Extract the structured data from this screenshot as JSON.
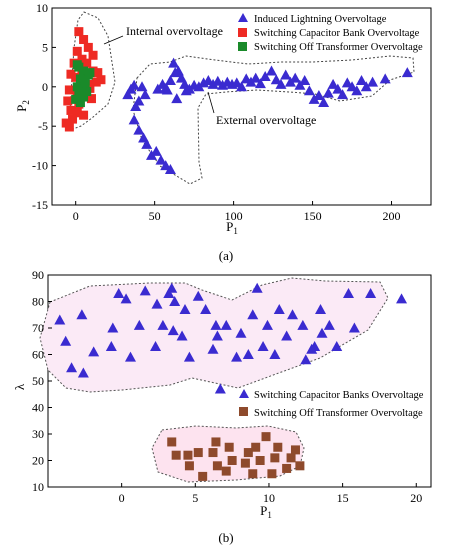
{
  "chart_data": [
    {
      "type": "scatter",
      "caption": "(a)",
      "xlabel": "P",
      "xlabel_sub": "1",
      "ylabel": "P",
      "ylabel_sub": "2",
      "xlim": [
        -15,
        225
      ],
      "ylim": [
        -15,
        10
      ],
      "xticks": [
        "0",
        "50",
        "100",
        "150",
        "200"
      ],
      "xtick_values": [
        0,
        50,
        100,
        150,
        200
      ],
      "yticks": [
        "10",
        "5",
        "0",
        "-5",
        "-10",
        "-15"
      ],
      "ytick_values": [
        10,
        5,
        0,
        -5,
        -10,
        -15
      ],
      "legend_position": "top-right",
      "annotations": [
        {
          "text": "Internal overvoltage",
          "x": 27,
          "y": 7.8
        },
        {
          "text": "External overvoltage",
          "x": 87,
          "y": -3.1
        }
      ],
      "series": [
        {
          "name": "Induced Lightning Overvoltage",
          "marker": "triangle",
          "color": "#3a2bd0",
          "points": [
            [
              33,
              -1
            ],
            [
              35,
              -0.3
            ],
            [
              37,
              0.2
            ],
            [
              38,
              -2.5
            ],
            [
              40,
              -1.8
            ],
            [
              42,
              0
            ],
            [
              44,
              -1
            ],
            [
              37,
              -4.2
            ],
            [
              40,
              -5.5
            ],
            [
              43,
              -6.5
            ],
            [
              45,
              -7.3
            ],
            [
              48,
              -8.7
            ],
            [
              51,
              -8.2
            ],
            [
              54,
              -9.3
            ],
            [
              57,
              -10
            ],
            [
              60,
              -10.5
            ],
            [
              52,
              -0.3
            ],
            [
              55,
              0.3
            ],
            [
              57,
              -0.2
            ],
            [
              60,
              0.8
            ],
            [
              62,
              3
            ],
            [
              63,
              1.8
            ],
            [
              65,
              2
            ],
            [
              67,
              1.1
            ],
            [
              69,
              0.3
            ],
            [
              72,
              -0.3
            ],
            [
              75,
              0.2
            ],
            [
              78,
              0
            ],
            [
              81,
              0.5
            ],
            [
              84,
              0.8
            ],
            [
              87,
              0.3
            ],
            [
              90,
              0.7
            ],
            [
              93,
              0.2
            ],
            [
              96,
              0.6
            ],
            [
              99,
              0.3
            ],
            [
              102,
              0.5
            ],
            [
              105,
              0
            ],
            [
              108,
              1
            ],
            [
              111,
              0.6
            ],
            [
              114,
              1.1
            ],
            [
              117,
              0.4
            ],
            [
              120,
              1.3
            ],
            [
              124,
              2
            ],
            [
              127,
              0.9
            ],
            [
              130,
              0.3
            ],
            [
              133,
              1.5
            ],
            [
              136,
              0.6
            ],
            [
              139,
              1.1
            ],
            [
              142,
              0.2
            ],
            [
              145,
              0.8
            ],
            [
              148,
              -0.5
            ],
            [
              151,
              -1.6
            ],
            [
              154,
              -1.1
            ],
            [
              157,
              -2
            ],
            [
              160,
              -0.8
            ],
            [
              163,
              0.3
            ],
            [
              166,
              -0.3
            ],
            [
              169,
              -1
            ],
            [
              172,
              0.5
            ],
            [
              175,
              0
            ],
            [
              178,
              -0.5
            ],
            [
              181,
              0.8
            ],
            [
              184,
              0
            ],
            [
              188,
              0.6
            ],
            [
              196,
              1
            ],
            [
              210,
              1.8
            ],
            [
              70,
              -0.5
            ],
            [
              64,
              -1.5
            ],
            [
              58,
              -0.4
            ]
          ]
        },
        {
          "name": "Switching Capacitor Bank Overvoltage",
          "marker": "square",
          "color": "#ee2a23",
          "points": [
            [
              2,
              7
            ],
            [
              5,
              6
            ],
            [
              8,
              5
            ],
            [
              11,
              4
            ],
            [
              1,
              4.5
            ],
            [
              4,
              3.5
            ],
            [
              7,
              3
            ],
            [
              11,
              2
            ],
            [
              14,
              1.8
            ],
            [
              -3,
              1.6
            ],
            [
              0,
              1.2
            ],
            [
              3,
              0.6
            ],
            [
              8,
              0.3
            ],
            [
              13,
              0.6
            ],
            [
              16,
              0.9
            ],
            [
              -4,
              -0.4
            ],
            [
              1,
              -0.6
            ],
            [
              6,
              -1
            ],
            [
              10,
              -1.5
            ],
            [
              -5,
              -1.8
            ],
            [
              2,
              -2.2
            ],
            [
              -3,
              -3
            ],
            [
              1,
              -3.3
            ],
            [
              5,
              -3.6
            ],
            [
              -2,
              -4.1
            ],
            [
              -6,
              -4.6
            ],
            [
              -4,
              -5.1
            ],
            [
              9,
              -0.2
            ],
            [
              4,
              1.9
            ],
            [
              -1,
              3
            ]
          ]
        },
        {
          "name": "Switching Off Transformer Overvoltage",
          "marker": "square",
          "color": "#1a8a2a",
          "points": [
            [
              2,
              2.5
            ],
            [
              5,
              2
            ],
            [
              8,
              1.5
            ],
            [
              3,
              1
            ],
            [
              6,
              0.5
            ],
            [
              1,
              0
            ],
            [
              4,
              -0.3
            ],
            [
              7,
              -0.6
            ],
            [
              2,
              -1
            ],
            [
              5,
              -1.3
            ],
            [
              0,
              -1.6
            ],
            [
              3,
              -2
            ],
            [
              6,
              0.8
            ],
            [
              9,
              1.8
            ],
            [
              1,
              2.8
            ]
          ]
        }
      ]
    },
    {
      "type": "scatter",
      "caption": "(b)",
      "xlabel": "P",
      "xlabel_sub": "1",
      "ylabel": "λ",
      "xlim": [
        -5,
        21
      ],
      "ylim": [
        10,
        90
      ],
      "xticks": [
        "0",
        "5",
        "10",
        "15",
        "20"
      ],
      "xtick_values": [
        0,
        5,
        10,
        15,
        20
      ],
      "yticks": [
        "90",
        "80",
        "70",
        "60",
        "50",
        "40",
        "30",
        "20",
        "10"
      ],
      "ytick_values": [
        90,
        80,
        70,
        60,
        50,
        40,
        30,
        20,
        10
      ],
      "legend_position": "center-right",
      "series": [
        {
          "name": "Switching Capacitor Banks Overvoltage",
          "marker": "triangle",
          "color": "#3a2bd0",
          "points": [
            [
              -4.2,
              73
            ],
            [
              -3.8,
              65
            ],
            [
              -3.4,
              55
            ],
            [
              -2.7,
              75
            ],
            [
              -2.6,
              53
            ],
            [
              -1.9,
              61
            ],
            [
              -0.6,
              70
            ],
            [
              -0.7,
              63
            ],
            [
              -0.2,
              83
            ],
            [
              0.3,
              81
            ],
            [
              0.6,
              59
            ],
            [
              1.2,
              71
            ],
            [
              1.6,
              84
            ],
            [
              2.3,
              63
            ],
            [
              2.4,
              79
            ],
            [
              2.8,
              71
            ],
            [
              3.2,
              83
            ],
            [
              3.4,
              85
            ],
            [
              3.5,
              69
            ],
            [
              3.6,
              80
            ],
            [
              4.1,
              67
            ],
            [
              4.3,
              77
            ],
            [
              4.6,
              59
            ],
            [
              5.2,
              82
            ],
            [
              5.7,
              77
            ],
            [
              6.2,
              62
            ],
            [
              6.4,
              71
            ],
            [
              6.5,
              67
            ],
            [
              6.7,
              47
            ],
            [
              7.1,
              71
            ],
            [
              7.8,
              59
            ],
            [
              8.1,
              68
            ],
            [
              8.6,
              60
            ],
            [
              8.9,
              75
            ],
            [
              9.2,
              85
            ],
            [
              9.6,
              63
            ],
            [
              9.9,
              71
            ],
            [
              10.4,
              60
            ],
            [
              10.7,
              77
            ],
            [
              11.2,
              67
            ],
            [
              11.6,
              75
            ],
            [
              12.3,
              71
            ],
            [
              12.5,
              58
            ],
            [
              12.9,
              62
            ],
            [
              13.1,
              63
            ],
            [
              13.5,
              77
            ],
            [
              13.6,
              68
            ],
            [
              14.1,
              71
            ],
            [
              14.6,
              63
            ],
            [
              15.4,
              83
            ],
            [
              15.8,
              70
            ],
            [
              16.9,
              83
            ],
            [
              19,
              81
            ]
          ]
        },
        {
          "name": "Switching Off Transformer Overvoltage",
          "marker": "square",
          "color": "#8e4a2c",
          "points": [
            [
              3.4,
              27
            ],
            [
              3.7,
              22
            ],
            [
              4.5,
              22
            ],
            [
              4.6,
              18
            ],
            [
              5.2,
              23
            ],
            [
              5.5,
              14
            ],
            [
              6.2,
              23
            ],
            [
              6.4,
              27
            ],
            [
              6.5,
              18
            ],
            [
              7.1,
              16
            ],
            [
              7.3,
              25
            ],
            [
              7.5,
              20
            ],
            [
              8.4,
              19
            ],
            [
              8.6,
              23
            ],
            [
              8.9,
              15
            ],
            [
              9.1,
              25
            ],
            [
              9.4,
              20
            ],
            [
              9.8,
              29
            ],
            [
              10.2,
              15
            ],
            [
              10.4,
              21
            ],
            [
              10.6,
              25
            ],
            [
              11.2,
              17
            ],
            [
              11.5,
              21
            ],
            [
              11.8,
              24
            ],
            [
              12.1,
              18
            ]
          ]
        }
      ]
    }
  ]
}
